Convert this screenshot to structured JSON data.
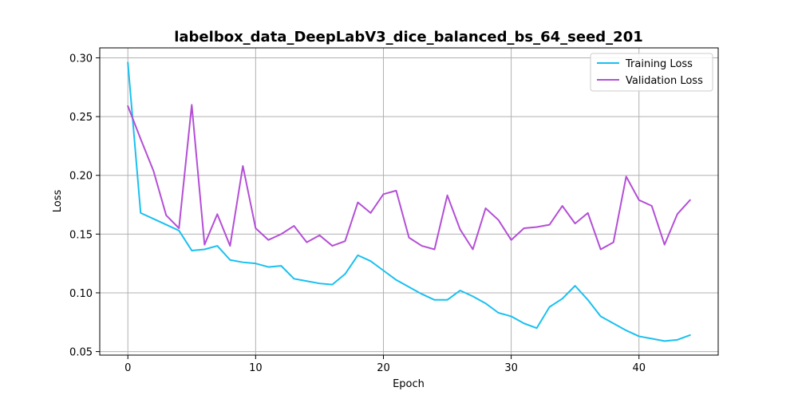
{
  "chart_data": {
    "type": "line",
    "title": "labelbox_data_DeepLabV3_dice_balanced_bs_64_seed_201",
    "xlabel": "Epoch",
    "ylabel": "Loss",
    "xlim": [
      -2.2,
      46.2
    ],
    "ylim": [
      0.047,
      0.3085
    ],
    "xticks": [
      0,
      10,
      20,
      30,
      40
    ],
    "yticks": [
      0.05,
      0.1,
      0.15,
      0.2,
      0.25,
      0.3
    ],
    "ytick_labels": [
      "0.05",
      "0.10",
      "0.15",
      "0.20",
      "0.25",
      "0.30"
    ],
    "grid": true,
    "legend_position": "top-right",
    "x": [
      0,
      1,
      2,
      3,
      4,
      5,
      6,
      7,
      8,
      9,
      10,
      11,
      12,
      13,
      14,
      15,
      16,
      17,
      18,
      19,
      20,
      21,
      22,
      23,
      24,
      25,
      26,
      27,
      28,
      29,
      30,
      31,
      32,
      33,
      34,
      35,
      36,
      37,
      38,
      39,
      40,
      41,
      42,
      43,
      44
    ],
    "series": [
      {
        "name": "Training Loss",
        "color": "#1ac0f0",
        "values": [
          0.296,
          0.168,
          0.163,
          0.158,
          0.153,
          0.136,
          0.137,
          0.14,
          0.128,
          0.126,
          0.125,
          0.122,
          0.123,
          0.112,
          0.11,
          0.108,
          0.107,
          0.116,
          0.132,
          0.127,
          0.119,
          0.111,
          0.105,
          0.099,
          0.094,
          0.094,
          0.102,
          0.097,
          0.091,
          0.083,
          0.08,
          0.074,
          0.07,
          0.088,
          0.095,
          0.106,
          0.094,
          0.08,
          0.074,
          0.068,
          0.063,
          0.061,
          0.059,
          0.06,
          0.064
        ]
      },
      {
        "name": "Validation Loss",
        "color": "#b44fd6",
        "values": [
          0.259,
          0.231,
          0.204,
          0.166,
          0.155,
          0.26,
          0.141,
          0.167,
          0.14,
          0.208,
          0.155,
          0.145,
          0.15,
          0.157,
          0.143,
          0.149,
          0.14,
          0.144,
          0.177,
          0.168,
          0.184,
          0.187,
          0.147,
          0.14,
          0.137,
          0.183,
          0.154,
          0.137,
          0.172,
          0.162,
          0.145,
          0.155,
          0.156,
          0.158,
          0.174,
          0.159,
          0.168,
          0.137,
          0.143,
          0.199,
          0.179,
          0.174,
          0.141,
          0.167,
          0.179
        ]
      }
    ]
  }
}
